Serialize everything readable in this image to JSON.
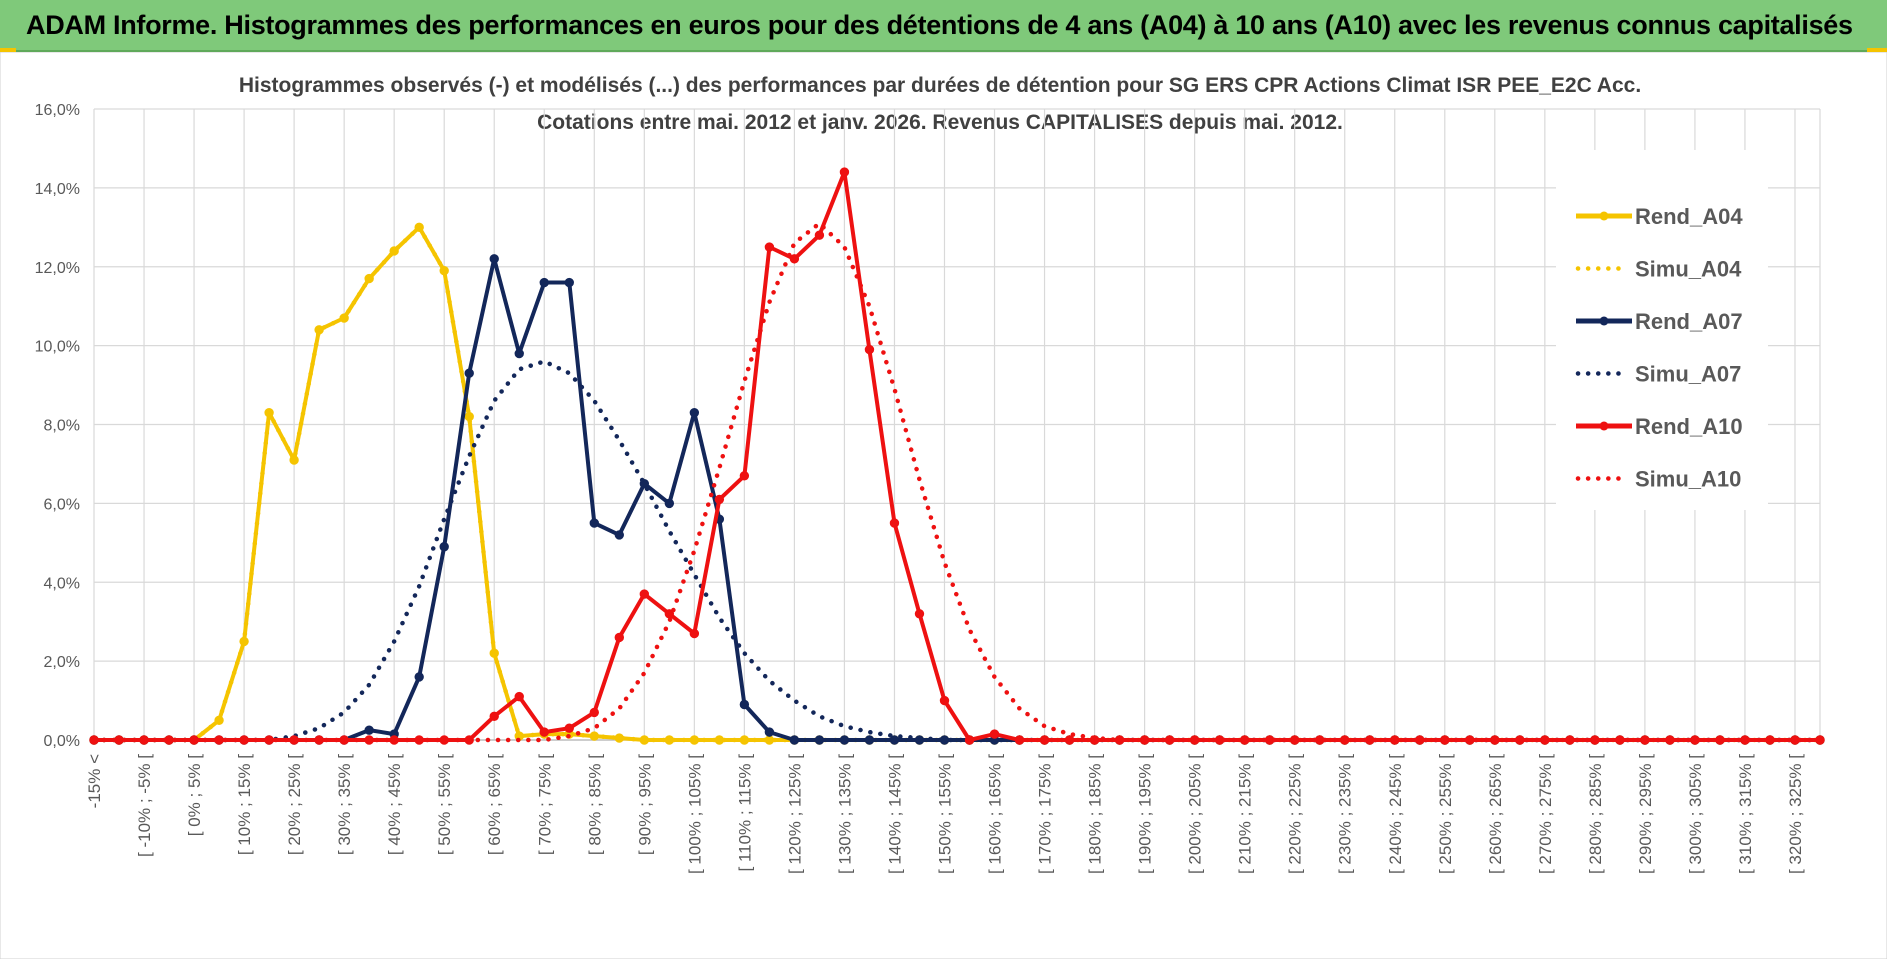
{
  "header": {
    "title": "ADAM Informe. Histogrammes des performances en euros pour des détentions de 4 ans (A04) à 10 ans (A10) avec les revenus connus capitalisés"
  },
  "colors": {
    "banner": "#7fc97a",
    "A04": "#f5c400",
    "A07": "#13275a",
    "A10": "#ee1111",
    "grid": "#d9d9d9"
  },
  "chart_data": {
    "type": "line",
    "title": "Histogrammes observés (-) et modélisés (...) des performances par durées de détention pour SG ERS CPR Actions Climat ISR PEE_E2C Acc.",
    "subtitle": "Cotations entre mai. 2012 et janv. 2026. Revenus CAPITALISES depuis mai. 2012.",
    "xlabel": "",
    "ylabel": "",
    "ylim": [
      0,
      16
    ],
    "y_ticks": [
      "0,0%",
      "2,0%",
      "4,0%",
      "6,0%",
      "8,0%",
      "10,0%",
      "12,0%",
      "14,0%",
      "16,0%"
    ],
    "grid": true,
    "legend_position": "top-right",
    "x_tick_labels": [
      "-15% <",
      "[ -10% ; -5% [",
      "[ 0% ; 5% [",
      "[ 10% ; 15% [",
      "[ 20% ; 25% [",
      "[ 30% ; 35% [",
      "[ 40% ; 45% [",
      "[ 50% ; 55% [",
      "[ 60% ; 65% [",
      "[ 70% ; 75% [",
      "[ 80% ; 85% [",
      "[ 90% ; 95% [",
      "[ 100% ; 105% [",
      "[ 110% ; 115% [",
      "[ 120% ; 125% [",
      "[ 130% ; 135% [",
      "[ 140% ; 145% [",
      "[ 150% ; 155% [",
      "[ 160% ; 165% [",
      "[ 170% ; 175% [",
      "[ 180% ; 185% [",
      "[ 190% ; 195% [",
      "[ 200% ; 205% [",
      "[ 210% ; 215% [",
      "[ 220% ; 225% [",
      "[ 230% ; 235% [",
      "[ 240% ; 245% [",
      "[ 250% ; 255% [",
      "[ 260% ; 265% [",
      "[ 270% ; 275% [",
      "[ 280% ; 285% [",
      "[ 290% ; 295% [",
      "[ 300% ; 305% [",
      "[ 310% ; 315% [",
      "[ 320% ; 325% ["
    ],
    "n_points": 70,
    "series": [
      {
        "name": "Rend_A04",
        "style": "solid",
        "color": "#f5c400",
        "values": [
          0,
          0,
          0,
          0,
          0,
          0.5,
          2.5,
          8.3,
          7.1,
          10.4,
          10.7,
          11.7,
          12.4,
          13.0,
          11.9,
          8.2,
          2.2,
          0.1,
          0.15,
          0.15,
          0.1,
          0.05,
          0,
          0,
          0,
          0,
          0,
          0,
          0,
          0,
          0,
          0,
          0,
          0,
          0,
          0,
          0,
          0,
          0,
          0,
          0,
          0,
          0,
          0,
          0,
          0,
          0,
          0,
          0,
          0,
          0,
          0,
          0,
          0,
          0,
          0,
          0,
          0,
          0,
          0,
          0,
          0,
          0,
          0,
          0,
          0,
          0,
          0,
          0,
          0
        ]
      },
      {
        "name": "Simu_A04",
        "style": "dotted",
        "color": "#f5c400",
        "values": [
          0,
          0,
          0,
          0,
          0,
          0.5,
          2.5,
          8.3,
          7.1,
          10.4,
          10.7,
          11.7,
          12.4,
          13.0,
          11.9,
          8.2,
          2.2,
          0.1,
          0.15,
          0.15,
          0.1,
          0.05,
          0,
          0,
          0,
          0,
          0,
          0,
          0,
          0,
          0,
          0,
          0,
          0,
          0,
          0,
          0,
          0,
          0,
          0,
          0,
          0,
          0,
          0,
          0,
          0,
          0,
          0,
          0,
          0,
          0,
          0,
          0,
          0,
          0,
          0,
          0,
          0,
          0,
          0,
          0,
          0,
          0,
          0,
          0,
          0,
          0,
          0,
          0,
          0
        ]
      },
      {
        "name": "Rend_A07",
        "style": "solid",
        "color": "#13275a",
        "values": [
          0,
          0,
          0,
          0,
          0,
          0,
          0,
          0,
          0,
          0,
          0,
          0.25,
          0.15,
          1.6,
          4.9,
          9.3,
          12.2,
          9.8,
          11.6,
          11.6,
          5.5,
          5.2,
          6.5,
          6.0,
          8.3,
          5.6,
          0.9,
          0.2,
          0,
          0,
          0,
          0,
          0,
          0,
          0,
          0,
          0,
          0,
          0,
          0,
          0,
          0,
          0,
          0,
          0,
          0,
          0,
          0,
          0,
          0,
          0,
          0,
          0,
          0,
          0,
          0,
          0,
          0,
          0,
          0,
          0,
          0,
          0,
          0,
          0,
          0,
          0,
          0,
          0,
          0
        ]
      },
      {
        "name": "Simu_A07",
        "style": "dotted",
        "color": "#13275a",
        "values": [
          0,
          0,
          0,
          0,
          0,
          0,
          0,
          0,
          0.1,
          0.3,
          0.7,
          1.4,
          2.5,
          3.9,
          5.6,
          7.2,
          8.6,
          9.4,
          9.6,
          9.3,
          8.6,
          7.6,
          6.5,
          5.3,
          4.2,
          3.1,
          2.2,
          1.5,
          1.0,
          0.6,
          0.35,
          0.2,
          0.1,
          0.05,
          0,
          0,
          0,
          0,
          0,
          0,
          0,
          0,
          0,
          0,
          0,
          0,
          0,
          0,
          0,
          0,
          0,
          0,
          0,
          0,
          0,
          0,
          0,
          0,
          0,
          0,
          0,
          0,
          0,
          0,
          0,
          0,
          0,
          0,
          0,
          0
        ]
      },
      {
        "name": "Rend_A10",
        "style": "solid",
        "color": "#ee1111",
        "values": [
          0,
          0,
          0,
          0,
          0,
          0,
          0,
          0,
          0,
          0,
          0,
          0,
          0,
          0,
          0,
          0,
          0.6,
          1.1,
          0.2,
          0.3,
          0.7,
          2.6,
          3.7,
          3.2,
          2.7,
          6.1,
          6.7,
          12.5,
          12.2,
          12.8,
          14.4,
          9.9,
          5.5,
          3.2,
          1.0,
          0,
          0.15,
          0,
          0,
          0,
          0,
          0,
          0,
          0,
          0,
          0,
          0,
          0,
          0,
          0,
          0,
          0,
          0,
          0,
          0,
          0,
          0,
          0,
          0,
          0,
          0,
          0,
          0,
          0,
          0,
          0,
          0,
          0,
          0,
          0
        ]
      },
      {
        "name": "Simu_A10",
        "style": "dotted",
        "color": "#ee1111",
        "values": [
          0,
          0,
          0,
          0,
          0,
          0,
          0,
          0,
          0,
          0,
          0,
          0,
          0,
          0,
          0,
          0,
          0,
          0,
          0,
          0.1,
          0.3,
          0.8,
          1.7,
          3.0,
          4.8,
          6.9,
          9.1,
          11.1,
          12.6,
          13.1,
          12.5,
          11.0,
          8.9,
          6.6,
          4.5,
          2.8,
          1.6,
          0.8,
          0.35,
          0.15,
          0.05,
          0,
          0,
          0,
          0,
          0,
          0,
          0,
          0,
          0,
          0,
          0,
          0,
          0,
          0,
          0,
          0,
          0,
          0,
          0,
          0,
          0,
          0,
          0,
          0,
          0,
          0,
          0,
          0,
          0
        ]
      }
    ]
  }
}
